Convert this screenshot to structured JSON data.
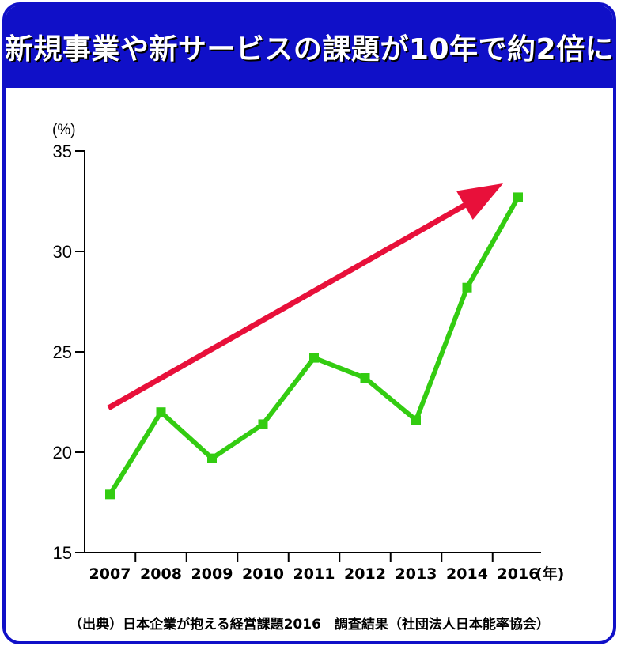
{
  "title": "新規事業や新サービスの課題が10年で約2倍に",
  "source": "（出典）日本企業が抱える経営課題2016　調査結果（社団法人日本能率協会）",
  "chart_data": {
    "type": "line",
    "title": "新規事業や新サービスの課題が10年で約2倍に",
    "xlabel": "(年)",
    "ylabel": "(%)",
    "categories": [
      "2007",
      "2008",
      "2009",
      "2010",
      "2011",
      "2012",
      "2013",
      "2014",
      "2016"
    ],
    "series": [
      {
        "values": [
          17.9,
          22.0,
          19.7,
          21.4,
          24.7,
          23.7,
          21.6,
          28.2,
          32.7
        ]
      }
    ],
    "ylim": [
      15,
      35
    ],
    "yticks": [
      15,
      20,
      25,
      30,
      35
    ],
    "grid": false,
    "annotation": "upward trend arrow",
    "colors": {
      "line": "#33cc11",
      "arrow": "#e8103a",
      "frame": "#1010c8"
    }
  }
}
